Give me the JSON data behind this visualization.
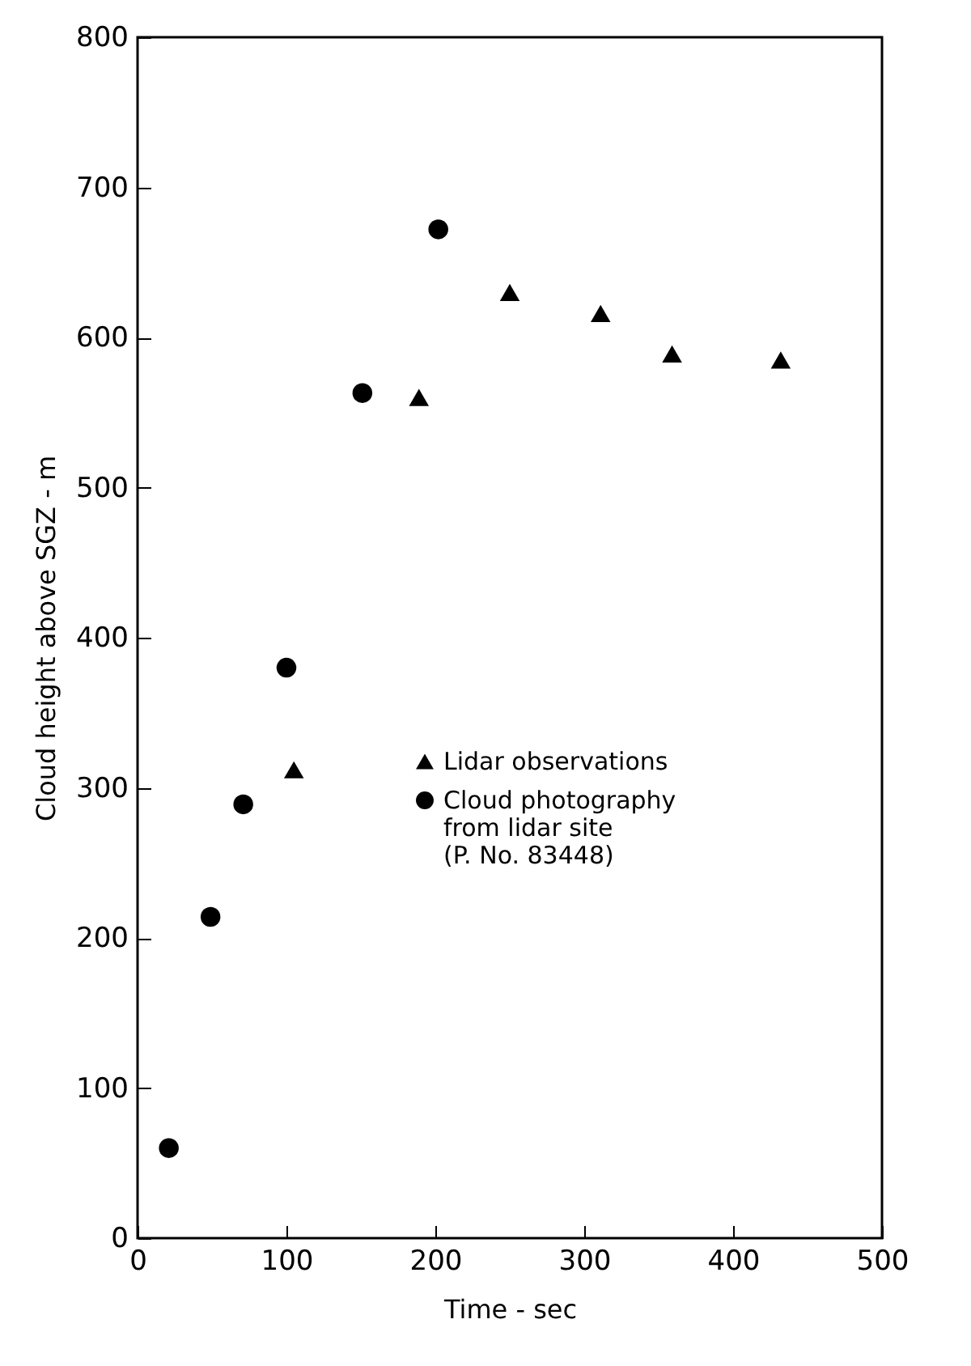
{
  "chart_data": {
    "type": "scatter",
    "xlabel": "Time  - sec",
    "ylabel": "Cloud height above SGZ - m",
    "xlim": [
      0,
      500
    ],
    "xticks": [
      0,
      100,
      200,
      300,
      400,
      500
    ],
    "ylim": [
      0,
      800
    ],
    "yticks": [
      0,
      100,
      200,
      300,
      400,
      500,
      600,
      700,
      800
    ],
    "grid": false,
    "legend": "right",
    "series": [
      {
        "name": "Lidar observations",
        "color": "#000000",
        "marker": "triangle",
        "x": [
          105,
          189,
          250,
          311,
          359,
          432
        ],
        "values": [
          312,
          560,
          630,
          616,
          589,
          585
        ]
      },
      {
        "name": "Cloud photography from lidar site (P. No. 83448)",
        "color": "#000000",
        "marker": "circle",
        "x": [
          21,
          49,
          71,
          100,
          151,
          202
        ],
        "values": [
          60,
          214,
          289,
          380,
          563,
          672
        ]
      }
    ]
  }
}
